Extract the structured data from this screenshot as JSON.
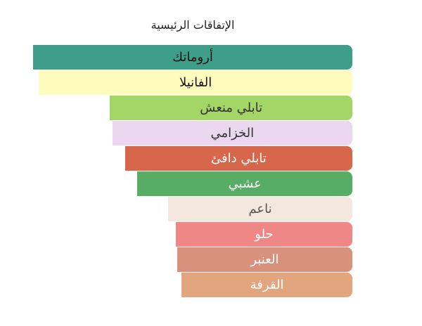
{
  "chart_data": {
    "type": "bar",
    "orientation": "horizontal",
    "title": "الإتفاقات الرئيسية",
    "categories": [
      "أروماتك",
      "الفانيلا",
      "تابلي منعش",
      "الخزامي",
      "تابلي دافئ",
      "عشبي",
      "ناعم",
      "حلو",
      "العنبر",
      "القرفة"
    ],
    "values": [
      100,
      98.2,
      75.9,
      75.2,
      71.2,
      67.3,
      57.7,
      55.3,
      54.9,
      53.5
    ],
    "xlim": [
      0,
      100
    ],
    "colors": [
      "#3f9e89",
      "#fefbbd",
      "#a4d567",
      "#ebd7ef",
      "#d6674b",
      "#58ad64",
      "#f3e7de",
      "#ef8787",
      "#d8917a",
      "#e3a57e"
    ],
    "label_colors": [
      "#111111",
      "#111111",
      "#333333",
      "#333333",
      "#ffffff",
      "#ffffff",
      "#555555",
      "#ffffff",
      "#ffffff",
      "#ffffff"
    ]
  }
}
